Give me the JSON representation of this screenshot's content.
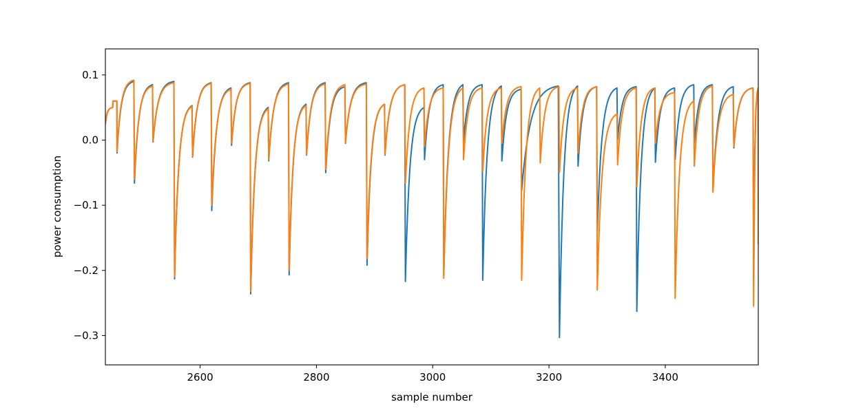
{
  "chart_data": {
    "type": "line",
    "title": "",
    "xlabel": "sample number",
    "ylabel": "power consumption",
    "xlim": [
      2437,
      3560
    ],
    "ylim": [
      -0.345,
      0.14
    ],
    "xticks": [
      2600,
      2800,
      3000,
      3200,
      3400
    ],
    "xtick_labels": [
      "2600",
      "2800",
      "3000",
      "3200",
      "3400"
    ],
    "yticks": [
      0.1,
      0.0,
      -0.1,
      -0.2,
      -0.3
    ],
    "ytick_labels": [
      "0.1",
      "0.0",
      "−0.1",
      "−0.2",
      "−0.3"
    ],
    "grid": false,
    "legend": "none",
    "series": [
      {
        "color": "#1f77b4",
        "drops": [
          [
            2437,
            0.025,
            0.05
          ],
          [
            2450,
            0.06,
            0.06
          ],
          [
            2457,
            -0.02,
            0.09
          ],
          [
            2487,
            -0.066,
            0.085
          ],
          [
            2519,
            -0.003,
            0.09
          ],
          [
            2556,
            -0.213,
            0.053
          ],
          [
            2587,
            -0.026,
            0.088
          ],
          [
            2620,
            -0.108,
            0.08
          ],
          [
            2654,
            -0.008,
            0.088
          ],
          [
            2687,
            -0.236,
            0.05
          ],
          [
            2718,
            -0.032,
            0.088
          ],
          [
            2753,
            -0.207,
            0.055
          ],
          [
            2783,
            -0.023,
            0.088
          ],
          [
            2816,
            -0.05,
            0.082
          ],
          [
            2850,
            -0.005,
            0.088
          ],
          [
            2887,
            -0.192,
            0.055
          ],
          [
            2918,
            -0.023,
            0.085
          ],
          [
            2953,
            -0.217,
            0.05
          ],
          [
            2986,
            -0.03,
            0.085
          ],
          [
            3019,
            -0.208,
            0.085
          ],
          [
            3053,
            -0.002,
            0.085
          ],
          [
            3086,
            -0.215,
            0.083
          ],
          [
            3119,
            -0.032,
            0.078
          ],
          [
            3153,
            -0.078,
            0.083
          ],
          [
            3218,
            -0.303,
            0.083
          ],
          [
            3250,
            -0.04,
            0.082
          ],
          [
            3283,
            -0.14,
            0.08
          ],
          [
            3318,
            0.0,
            0.082
          ],
          [
            3351,
            -0.263,
            0.08
          ],
          [
            3383,
            -0.034,
            0.08
          ],
          [
            3417,
            -0.03,
            0.085
          ],
          [
            3450,
            -0.005,
            0.085
          ],
          [
            3482,
            -0.078,
            0.082
          ],
          [
            3518,
            -0.012,
            0.08
          ],
          [
            3552,
            -0.218,
            0.08
          ],
          [
            3560,
            -0.1,
            -0.1
          ]
        ]
      },
      {
        "color": "#ff7f0e",
        "drops": [
          [
            2437,
            0.025,
            0.05
          ],
          [
            2450,
            0.06,
            0.06
          ],
          [
            2457,
            -0.018,
            0.092
          ],
          [
            2487,
            -0.06,
            0.083
          ],
          [
            2519,
            -0.002,
            0.088
          ],
          [
            2556,
            -0.21,
            0.052
          ],
          [
            2587,
            -0.025,
            0.087
          ],
          [
            2620,
            -0.1,
            0.078
          ],
          [
            2654,
            -0.005,
            0.087
          ],
          [
            2687,
            -0.232,
            0.048
          ],
          [
            2718,
            -0.03,
            0.086
          ],
          [
            2753,
            -0.2,
            0.053
          ],
          [
            2783,
            -0.022,
            0.086
          ],
          [
            2816,
            -0.045,
            0.085
          ],
          [
            2850,
            -0.004,
            0.086
          ],
          [
            2887,
            -0.182,
            0.055
          ],
          [
            2918,
            -0.022,
            0.085
          ],
          [
            2953,
            -0.066,
            0.08
          ],
          [
            2986,
            -0.01,
            0.08
          ],
          [
            3019,
            -0.212,
            0.08
          ],
          [
            3053,
            -0.03,
            0.08
          ],
          [
            3086,
            -0.048,
            0.08
          ],
          [
            3119,
            -0.005,
            0.082
          ],
          [
            3153,
            -0.215,
            0.08
          ],
          [
            3185,
            -0.035,
            0.082
          ],
          [
            3218,
            -0.05,
            0.08
          ],
          [
            3250,
            -0.02,
            0.082
          ],
          [
            3283,
            -0.23,
            0.04
          ],
          [
            3318,
            -0.038,
            0.08
          ],
          [
            3351,
            -0.072,
            0.08
          ],
          [
            3383,
            -0.005,
            0.073
          ],
          [
            3417,
            -0.243,
            0.06
          ],
          [
            3450,
            -0.04,
            0.083
          ],
          [
            3482,
            -0.08,
            0.07
          ],
          [
            3518,
            -0.01,
            0.08
          ],
          [
            3552,
            -0.255,
            0.08
          ],
          [
            3560,
            -0.16,
            -0.16
          ]
        ]
      }
    ]
  }
}
